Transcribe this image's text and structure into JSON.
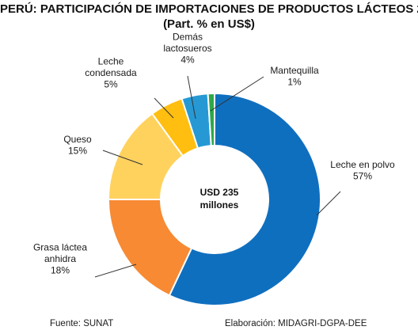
{
  "chart_data": {
    "type": "pie",
    "title": "PERÚ: PARTICIPACIÓN DE IMPORTACIONES DE PRODUCTOS LÁCTEOS 2",
    "subtitle": "(Part. % en US$)",
    "center_label": [
      "USD 235",
      "millones"
    ],
    "slices": [
      {
        "label": [
          "Leche en polvo"
        ],
        "value": 57,
        "value_label": "57%",
        "color": "#0F6FBF"
      },
      {
        "label": [
          "Grasa láctea",
          "anhidra"
        ],
        "value": 18,
        "value_label": "18%",
        "color": "#F78A33"
      },
      {
        "label": [
          "Queso"
        ],
        "value": 15,
        "value_label": "15%",
        "color": "#FFD25E"
      },
      {
        "label": [
          "Leche",
          "condensada"
        ],
        "value": 5,
        "value_label": "5%",
        "color": "#FFBE10"
      },
      {
        "label": [
          "Demás",
          "lactosueros"
        ],
        "value": 4,
        "value_label": "4%",
        "color": "#2699D4"
      },
      {
        "label": [
          "Mantequilla"
        ],
        "value": 1,
        "value_label": "1%",
        "color": "#2EA84A"
      }
    ]
  },
  "footer": {
    "source": "Fuente: SUNAT",
    "credit": "Elaboración: MIDAGRI-DGPA-DEE"
  }
}
